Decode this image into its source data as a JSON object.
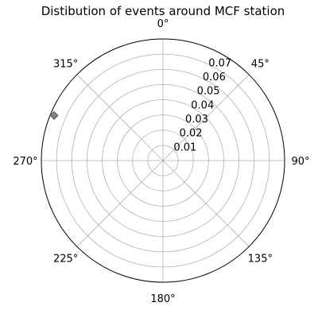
{
  "chart_data": {
    "type": "scatter",
    "projection": "polar",
    "title": "Distibution of events around MCF station",
    "theta_zero": "N",
    "theta_direction": "clockwise",
    "angle_ticks": [
      "0°",
      "45°",
      "90°",
      "135°",
      "180°",
      "225°",
      "270°",
      "315°"
    ],
    "angle_tick_values": [
      0,
      45,
      90,
      135,
      180,
      225,
      270,
      315
    ],
    "r_ticks": [
      "0.01",
      "0.02",
      "0.03",
      "0.04",
      "0.05",
      "0.06",
      "0.07"
    ],
    "r_tick_values": [
      0.01,
      0.02,
      0.03,
      0.04,
      0.05,
      0.06,
      0.07
    ],
    "rlim": [
      0,
      0.08
    ],
    "rlabel_position_deg": 22.5,
    "grid": true,
    "marker": "diamond",
    "marker_color": "#808080",
    "points": [
      {
        "theta_deg": 292.5,
        "r": 0.0775
      }
    ]
  }
}
